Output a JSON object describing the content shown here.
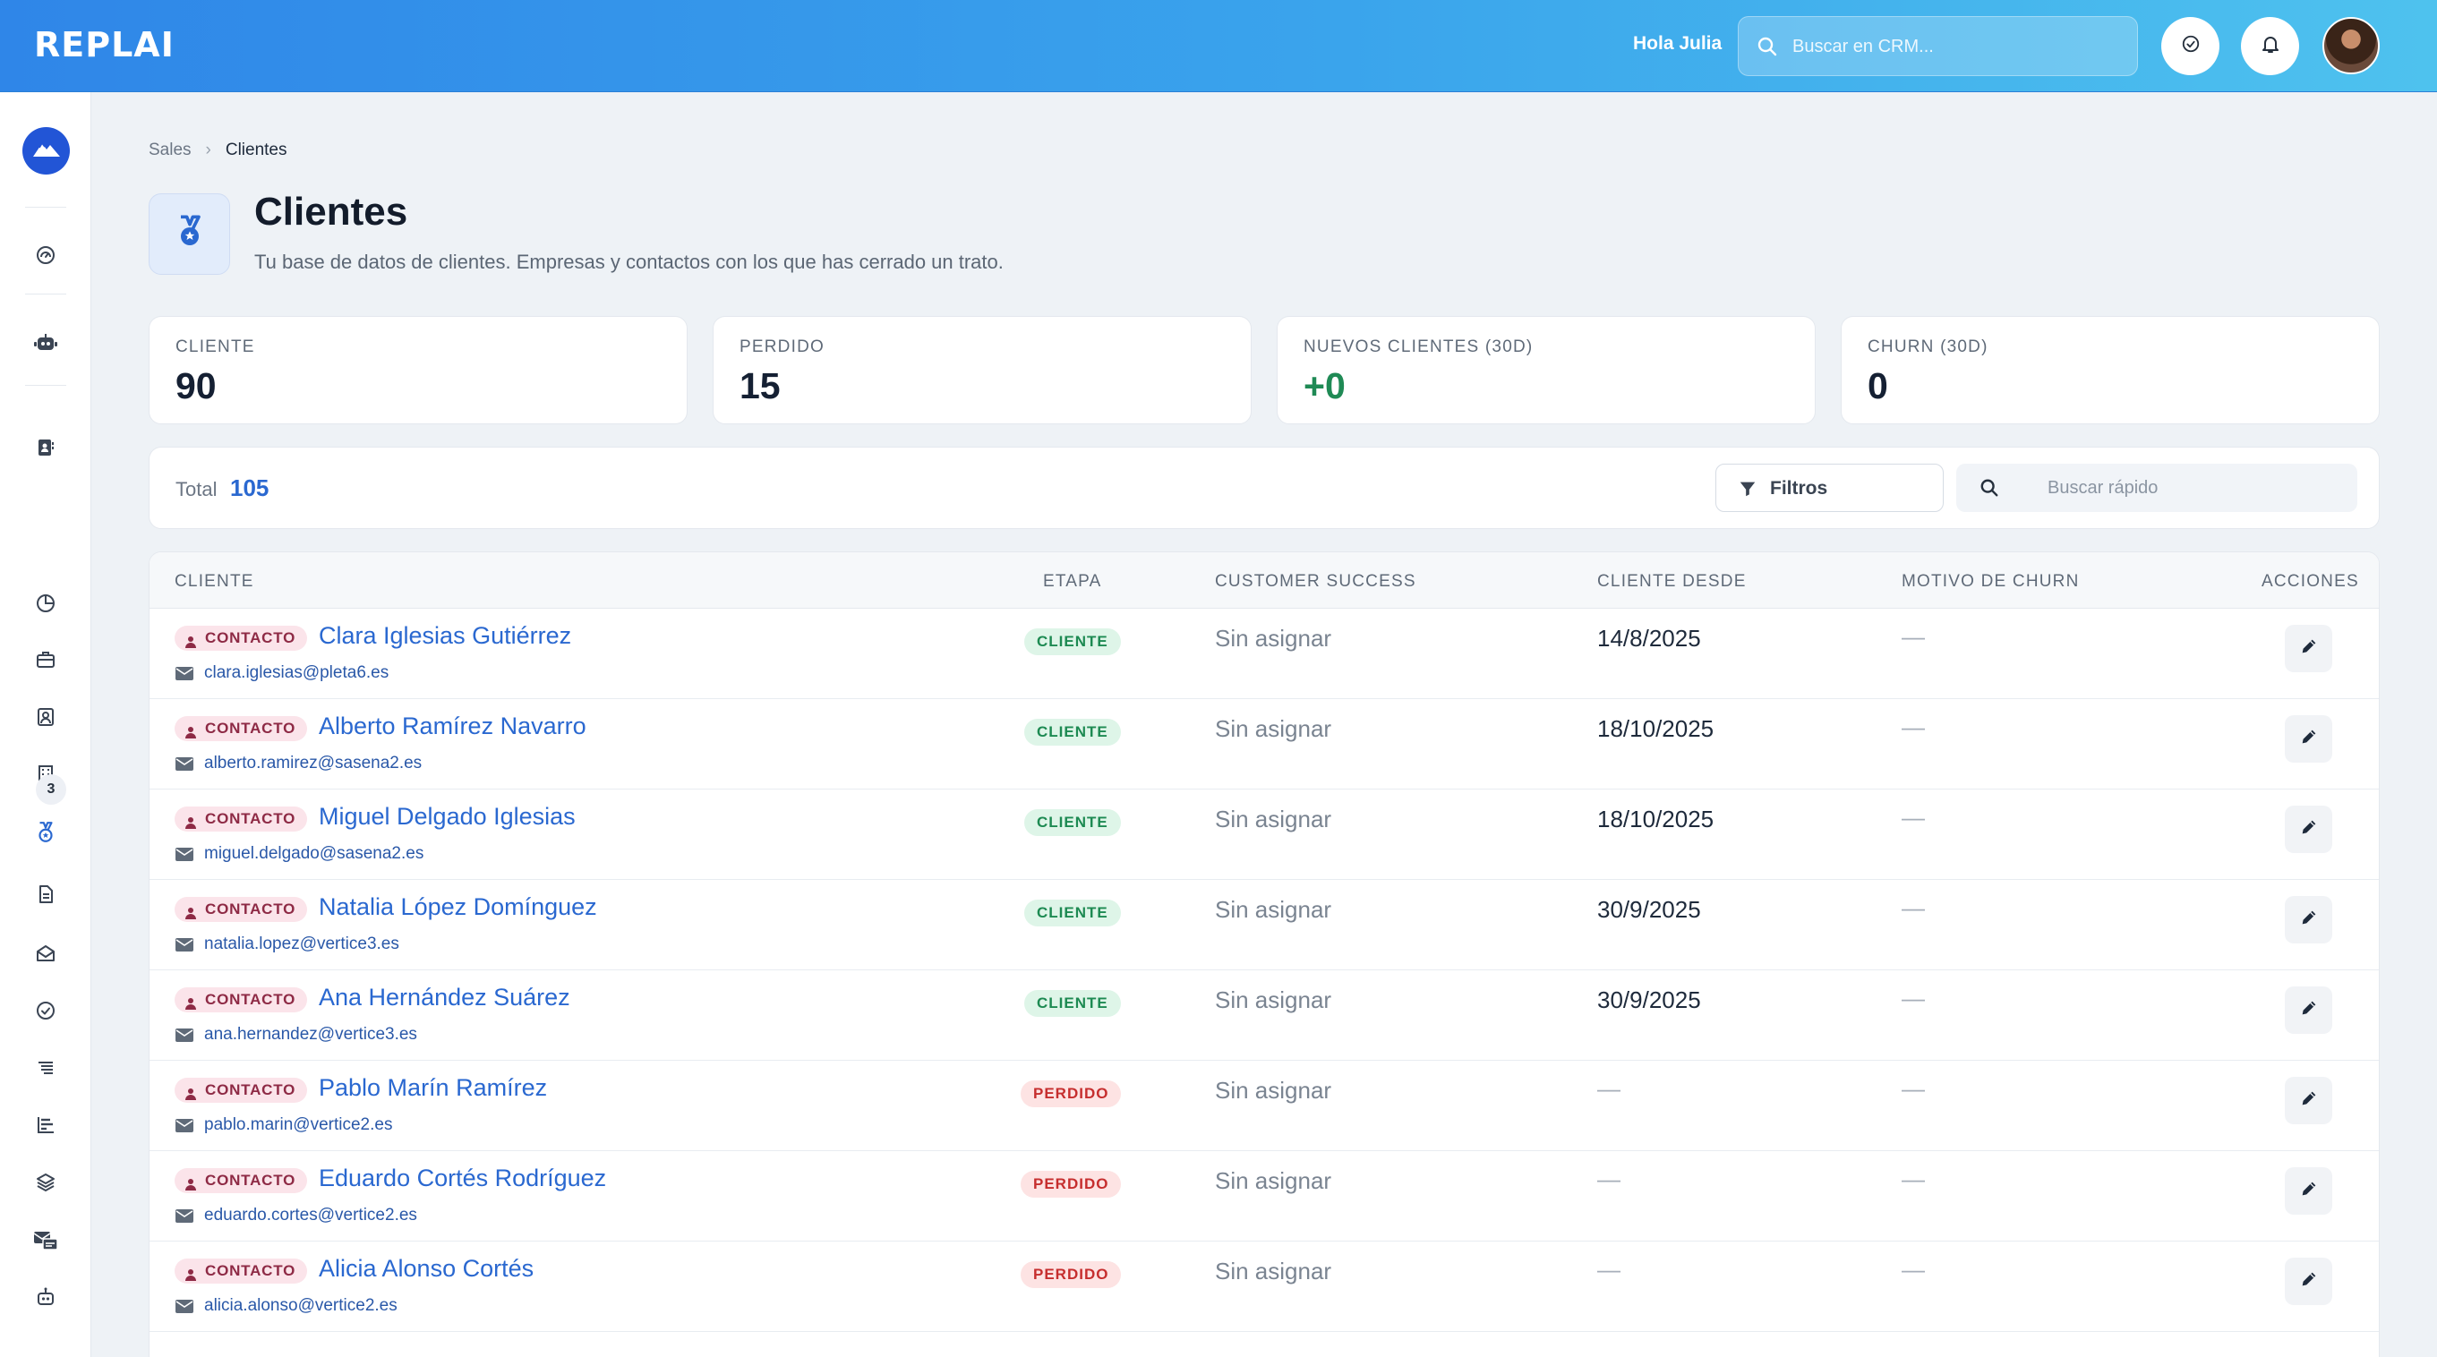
{
  "topbar": {
    "logo": "REPLAI",
    "greeting": "Hola Julia",
    "search_placeholder": "Buscar en CRM..."
  },
  "sidebar": {
    "badge_count": "3"
  },
  "breadcrumb": {
    "parent": "Sales",
    "current": "Clientes"
  },
  "page": {
    "title": "Clientes",
    "subtitle": "Tu base de datos de clientes. Empresas y contactos con los que has cerrado un trato."
  },
  "stats": [
    {
      "label": "CLIENTE",
      "value": "90"
    },
    {
      "label": "PERDIDO",
      "value": "15"
    },
    {
      "label": "NUEVOS CLIENTES (30D)",
      "value": "+0"
    },
    {
      "label": "CHURN (30D)",
      "value": "0"
    }
  ],
  "toolbar": {
    "total_label": "Total",
    "total_value": "105",
    "filters_label": "Filtros",
    "quick_search_placeholder": "Buscar rápido"
  },
  "table": {
    "columns": {
      "cliente": "CLIENTE",
      "etapa": "ETAPA",
      "customer_success": "CUSTOMER SUCCESS",
      "cliente_desde": "CLIENTE DESDE",
      "motivo_churn": "MOTIVO DE CHURN",
      "acciones": "ACCIONES"
    },
    "rows": [
      {
        "type": "CONTACTO",
        "name": "Clara Iglesias Gutiérrez",
        "email": "clara.iglesias@pleta6.es",
        "stage": "CLIENTE",
        "cs": "Sin asignar",
        "since": "14/8/2025",
        "churn": "—"
      },
      {
        "type": "CONTACTO",
        "name": "Alberto Ramírez Navarro",
        "email": "alberto.ramirez@sasena2.es",
        "stage": "CLIENTE",
        "cs": "Sin asignar",
        "since": "18/10/2025",
        "churn": "—"
      },
      {
        "type": "CONTACTO",
        "name": "Miguel Delgado Iglesias",
        "email": "miguel.delgado@sasena2.es",
        "stage": "CLIENTE",
        "cs": "Sin asignar",
        "since": "18/10/2025",
        "churn": "—"
      },
      {
        "type": "CONTACTO",
        "name": "Natalia López Domínguez",
        "email": "natalia.lopez@vertice3.es",
        "stage": "CLIENTE",
        "cs": "Sin asignar",
        "since": "30/9/2025",
        "churn": "—"
      },
      {
        "type": "CONTACTO",
        "name": "Ana Hernández Suárez",
        "email": "ana.hernandez@vertice3.es",
        "stage": "CLIENTE",
        "cs": "Sin asignar",
        "since": "30/9/2025",
        "churn": "—"
      },
      {
        "type": "CONTACTO",
        "name": "Pablo Marín Ramírez",
        "email": "pablo.marin@vertice2.es",
        "stage": "PERDIDO",
        "cs": "Sin asignar",
        "since": "—",
        "churn": "—"
      },
      {
        "type": "CONTACTO",
        "name": "Eduardo Cortés Rodríguez",
        "email": "eduardo.cortes@vertice2.es",
        "stage": "PERDIDO",
        "cs": "Sin asignar",
        "since": "—",
        "churn": "—"
      },
      {
        "type": "CONTACTO",
        "name": "Alicia Alonso Cortés",
        "email": "alicia.alonso@vertice2.es",
        "stage": "PERDIDO",
        "cs": "Sin asignar",
        "since": "—",
        "churn": "—"
      }
    ]
  },
  "colors": {
    "accent": "#2a68d0",
    "topbar_start": "#2f86e8",
    "topbar_end": "#4ec2ee",
    "stage_cliente": "#1d8a52",
    "stage_perdido": "#c62e2e",
    "contact_tag": "#8e2a45",
    "positive": "#1f8a55"
  },
  "icons": {
    "topbar": [
      "search-icon",
      "check-circle-icon",
      "bell-icon"
    ],
    "sidebar": [
      "mountain-logo-icon",
      "dashboard-icon",
      "robot-icon",
      "contacts-book-icon",
      "pie-chart-icon",
      "briefcase-icon",
      "person-card-icon",
      "building-icon",
      "medal-icon",
      "document-icon",
      "mail-open-icon",
      "check-circle-icon",
      "list-icon",
      "bar-chart-icon",
      "layers-icon",
      "inbox-transfer-icon",
      "bot-icon"
    ],
    "row": [
      "person-icon",
      "envelope-icon",
      "pencil-icon"
    ]
  }
}
